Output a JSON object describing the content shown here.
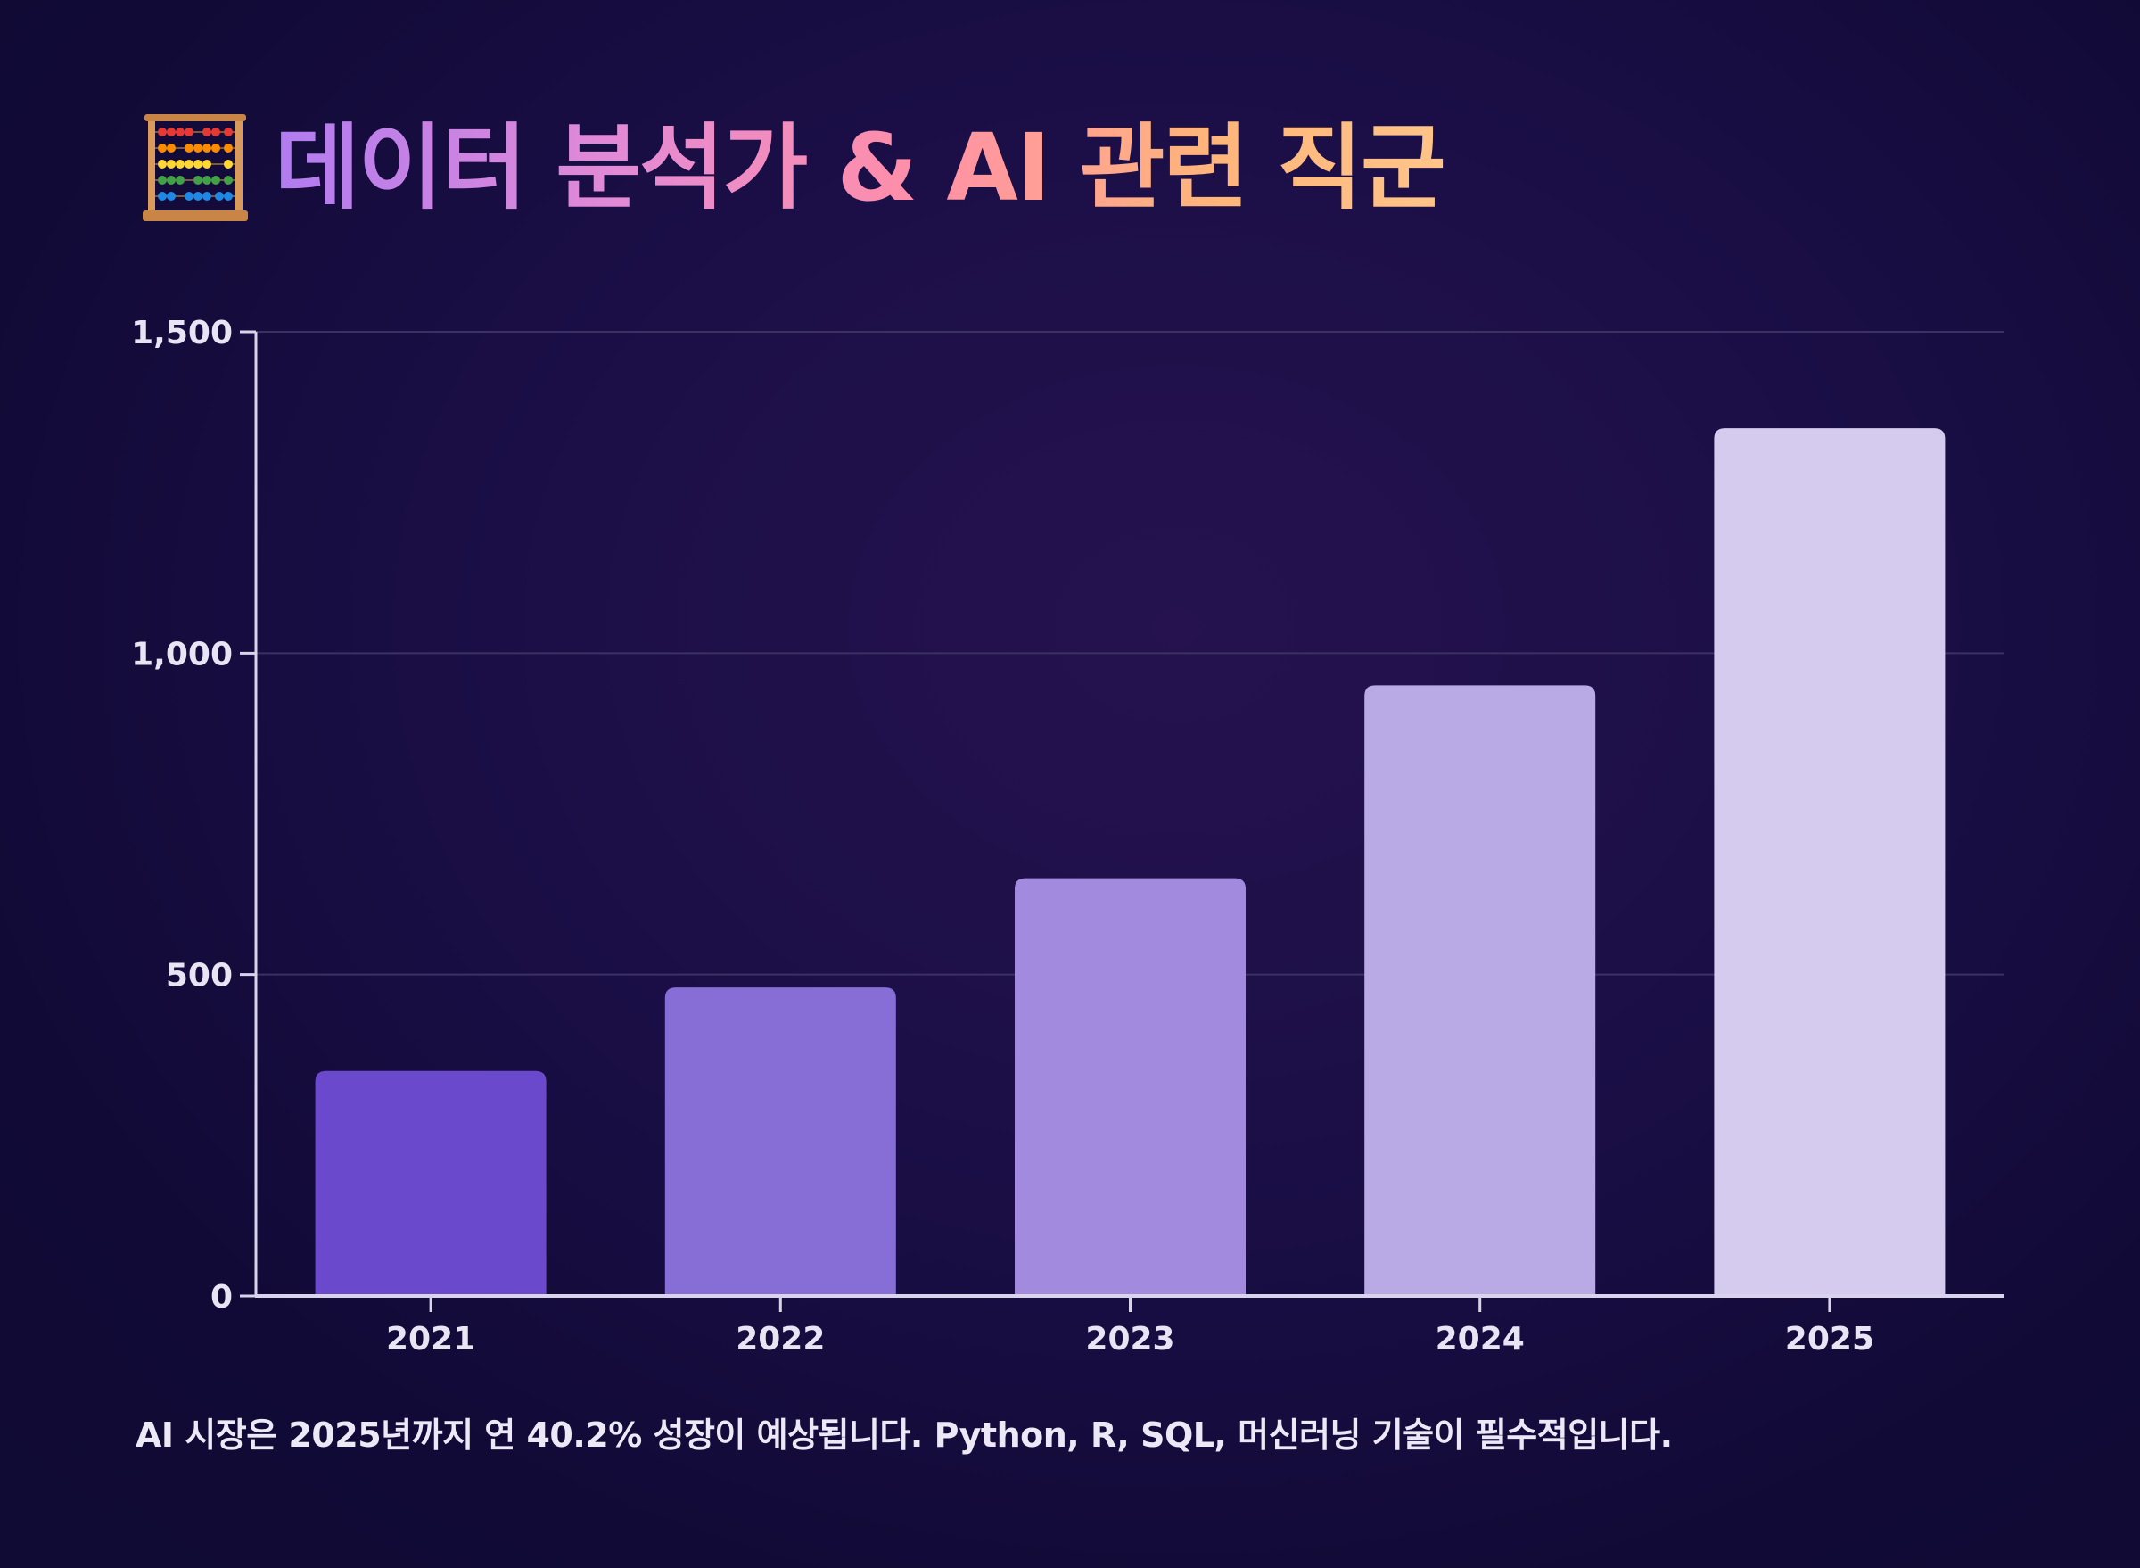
{
  "page": {
    "title": "데이터 분석가 & AI 관련 직군",
    "title_icon": "abacus-icon",
    "caption": "AI 시장은 2025년까지 연 40.2% 성장이 예상됩니다. Python, R, SQL, 머신러닝 기술이 필수적입니다."
  },
  "colors": {
    "bar_2021": "#6b49cc",
    "bar_2022": "#876ed6",
    "bar_2023": "#a28bde",
    "bar_2024": "#b9aae6",
    "bar_2025": "#d4cbef",
    "axis": "#d9d4ea",
    "grid": "#3b3163",
    "tick_label": "#e8e4f4"
  },
  "chart_data": {
    "type": "bar",
    "categories": [
      "2021",
      "2022",
      "2023",
      "2024",
      "2025"
    ],
    "values": [
      350,
      480,
      650,
      950,
      1350
    ],
    "ylim": [
      0,
      1500
    ],
    "yticks": [
      0,
      500,
      1000,
      1500
    ],
    "ytick_labels": [
      "0",
      "500",
      "1,000",
      "1,500"
    ],
    "xlabel": "",
    "ylabel": "",
    "grid": true,
    "legend": "none"
  }
}
